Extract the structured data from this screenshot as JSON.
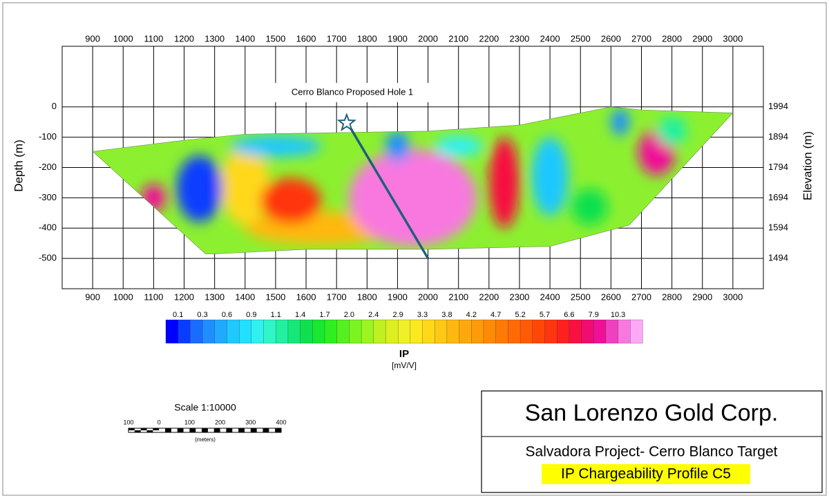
{
  "chart_data": {
    "type": "contour",
    "annotation": "Cerro Blanco Proposed Hole 1",
    "xlim": [
      800,
      3100
    ],
    "xticks": [
      900,
      1000,
      1100,
      1200,
      1300,
      1400,
      1500,
      1600,
      1700,
      1800,
      1900,
      2000,
      2100,
      2200,
      2300,
      2400,
      2500,
      2600,
      2700,
      2800,
      2900,
      3000
    ],
    "ylabel": "Depth (m)",
    "ylim": [
      -600,
      200
    ],
    "yticks": [
      0,
      -100,
      -200,
      -300,
      -400,
      -500
    ],
    "y2label": "Elevation (m)",
    "y2lim": [
      1394,
      2194
    ],
    "y2ticks": [
      1994,
      1894,
      1794,
      1694,
      1594,
      1494
    ],
    "grid": true,
    "section": {
      "fill_color": "#8cf030",
      "top_x": [
        900,
        1200,
        1400,
        1700,
        2000,
        2300,
        2500,
        2600,
        2700,
        3000
      ],
      "top_depth": [
        -147,
        -110,
        -90,
        -85,
        -80,
        -60,
        -20,
        0,
        -10,
        -20
      ],
      "bottom_x": [
        3000,
        2660,
        2400,
        2000,
        1600,
        1300,
        1270,
        900
      ],
      "bottom_depth": [
        -20,
        -390,
        -460,
        -470,
        -470,
        -485,
        -485,
        -147
      ]
    },
    "anomalies": [
      {
        "x": 1650,
        "depth": -400,
        "value": 3.8,
        "width_m": 500,
        "height_m": 110
      },
      {
        "x": 1400,
        "depth": -260,
        "value": 3.3,
        "width_m": 160,
        "height_m": 260
      },
      {
        "x": 1550,
        "depth": -310,
        "value": 5.7,
        "width_m": 200,
        "height_m": 150
      },
      {
        "x": 1950,
        "depth": -300,
        "value": 10.3,
        "width_m": 420,
        "height_m": 320
      },
      {
        "x": 1250,
        "depth": -270,
        "value": 0.1,
        "width_m": 150,
        "height_m": 220
      },
      {
        "x": 1100,
        "depth": -300,
        "value": 7.9,
        "width_m": 80,
        "height_m": 90
      },
      {
        "x": 1500,
        "depth": -130,
        "value": 0.6,
        "width_m": 300,
        "height_m": 70
      },
      {
        "x": 1900,
        "depth": -130,
        "value": 0.3,
        "width_m": 80,
        "height_m": 100
      },
      {
        "x": 2100,
        "depth": -130,
        "value": 0.9,
        "width_m": 160,
        "height_m": 70
      },
      {
        "x": 2250,
        "depth": -250,
        "value": 6.6,
        "width_m": 100,
        "height_m": 300
      },
      {
        "x": 2400,
        "depth": -230,
        "value": 0.6,
        "width_m": 120,
        "height_m": 260
      },
      {
        "x": 2530,
        "depth": -330,
        "value": 1.4,
        "width_m": 120,
        "height_m": 120
      },
      {
        "x": 2630,
        "depth": -50,
        "value": 0.3,
        "width_m": 60,
        "height_m": 90
      },
      {
        "x": 2750,
        "depth": -150,
        "value": 7.9,
        "width_m": 120,
        "height_m": 150
      },
      {
        "x": 2800,
        "depth": -80,
        "value": 1.1,
        "width_m": 100,
        "height_m": 100
      }
    ],
    "hole": {
      "x": [
        1740,
        2000
      ],
      "depth": [
        -60,
        -500
      ],
      "color": "#1f5f7a"
    },
    "colorbar": {
      "title": "IP",
      "units": "[mV/V]",
      "levels": [
        0.1,
        0.3,
        0.6,
        0.9,
        1.1,
        1.4,
        1.7,
        {
          "value": 2,
          "label": "2.0"
        },
        2.4,
        2.9,
        3.3,
        3.8,
        4.2,
        4.7,
        5.2,
        5.7,
        6.6,
        7.9,
        10.3
      ],
      "colors": [
        "#0000ff",
        "#0a3cff",
        "#1a6cff",
        "#1f8fff",
        "#20aaff",
        "#1fc8ff",
        "#22e0ff",
        "#30f0f0",
        "#2ff5c8",
        "#22f0a0",
        "#15e878",
        "#10e050",
        "#18e830",
        "#30ee20",
        "#55f020",
        "#7af520",
        "#9cf520",
        "#bff020",
        "#dcf020",
        "#f0f028",
        "#fce820",
        "#ffd81a",
        "#ffc815",
        "#ffb810",
        "#ffa80c",
        "#ff9a0a",
        "#ff8a08",
        "#ff7a06",
        "#ff6a05",
        "#ff5a05",
        "#ff4805",
        "#ff3510",
        "#ff2020",
        "#f81040",
        "#f00c70",
        "#f01098",
        "#f040c0",
        "#f878e0",
        "#ffa8f8"
      ]
    },
    "scale": {
      "title": "Scale 1:10000",
      "units": "(meters)",
      "ticks": [
        {
          "value": -100,
          "label": "100"
        },
        0,
        100,
        200,
        300,
        400
      ]
    },
    "title_box": {
      "company": "San Lorenzo Gold Corp.",
      "project": "Salvadora Project- Cerro Blanco Target",
      "profile": "IP Chargeability Profile C5"
    }
  }
}
